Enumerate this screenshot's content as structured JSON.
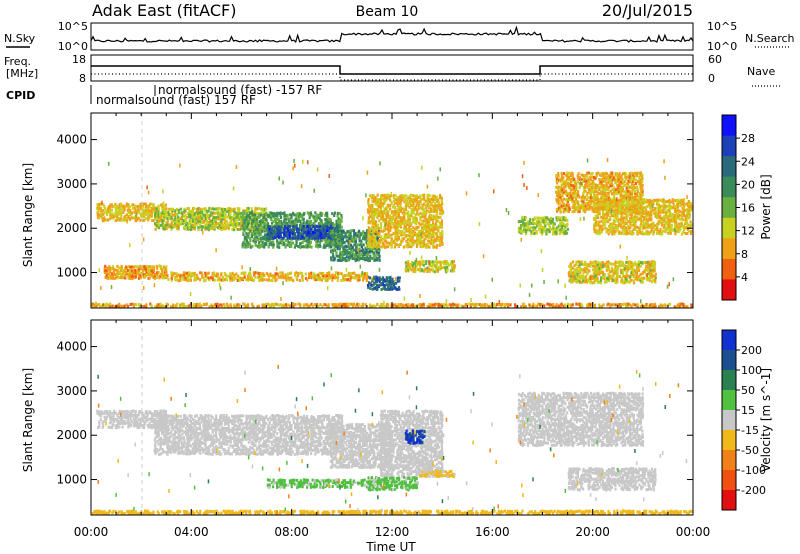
{
  "header": {
    "station": "Adak East (fitACF)",
    "beam": "Beam 10",
    "date": "20/Jul/2015"
  },
  "noise_panel": {
    "left_label": "N.Sky",
    "right_label": "N.Search",
    "left_ticks": [
      "10^5",
      "10^0"
    ],
    "right_ticks": [
      "10^5",
      "10^0"
    ],
    "right_line_style": "dotted"
  },
  "freq_panel": {
    "left_label_line1": "Freq.",
    "left_label_line2": "[MHz]",
    "right_label": "Nave",
    "left_ticks": [
      "18",
      "8"
    ],
    "right_ticks": [
      "60",
      "0"
    ],
    "right_line_style": "dotted"
  },
  "cpid_panel": {
    "label": "CPID",
    "entries": [
      {
        "text": "normalsound (fast) -157 RF",
        "start": "02:30",
        "row": "upper"
      },
      {
        "text": "normalsound (fast) 157 RF",
        "start": "00:00",
        "row": "lower"
      }
    ]
  },
  "chart_data": [
    {
      "type": "heatmap",
      "panel": "power",
      "xlabel": "",
      "ylabel": "Slant Range [km]",
      "x_ticks": [
        "00:00",
        "04:00",
        "08:00",
        "12:00",
        "16:00",
        "20:00",
        "00:00"
      ],
      "y_ticks": [
        1000,
        2000,
        3000,
        4000
      ],
      "ylim": [
        200,
        4600
      ],
      "xlim_hours": [
        0,
        24
      ],
      "colorbar": {
        "label": "Power [dB]",
        "ticks": [
          4,
          8,
          12,
          16,
          20,
          24,
          28
        ],
        "range": [
          0,
          32
        ],
        "colors": [
          "#1010ff",
          "#1c40b8",
          "#2a6a7a",
          "#3b8a5a",
          "#69b040",
          "#c8d020",
          "#f0a018",
          "#f06010",
          "#e01010"
        ]
      },
      "regions": [
        {
          "t0": 0.2,
          "t1": 3.0,
          "r0": 2200,
          "r1": 2600,
          "level": 10
        },
        {
          "t0": 2.5,
          "t1": 7.0,
          "r0": 2000,
          "r1": 2500,
          "level": 13
        },
        {
          "t0": 6.0,
          "t1": 10.0,
          "r0": 1600,
          "r1": 2400,
          "level": 18
        },
        {
          "t0": 7.0,
          "t1": 9.8,
          "r0": 1800,
          "r1": 2100,
          "level": 27
        },
        {
          "t0": 9.5,
          "t1": 11.5,
          "r0": 1300,
          "r1": 2000,
          "level": 20
        },
        {
          "t0": 11.0,
          "t1": 14.0,
          "r0": 1600,
          "r1": 2800,
          "level": 10
        },
        {
          "t0": 11.0,
          "t1": 12.3,
          "r0": 650,
          "r1": 950,
          "level": 24
        },
        {
          "t0": 12.5,
          "t1": 14.5,
          "r0": 1050,
          "r1": 1300,
          "level": 12
        },
        {
          "t0": 3.0,
          "t1": 11.0,
          "r0": 850,
          "r1": 1050,
          "level": 9
        },
        {
          "t0": 0.5,
          "t1": 3.0,
          "r0": 900,
          "r1": 1200,
          "level": 8
        },
        {
          "t0": 17.0,
          "t1": 19.0,
          "r0": 1900,
          "r1": 2300,
          "level": 14
        },
        {
          "t0": 18.5,
          "t1": 22.0,
          "r0": 2400,
          "r1": 3300,
          "level": 9
        },
        {
          "t0": 19.0,
          "t1": 22.5,
          "r0": 800,
          "r1": 1300,
          "level": 11
        },
        {
          "t0": 20.0,
          "t1": 24.0,
          "r0": 1900,
          "r1": 2700,
          "level": 10
        },
        {
          "t0": 0.0,
          "t1": 24.0,
          "r0": 220,
          "r1": 340,
          "level": 8
        }
      ]
    },
    {
      "type": "heatmap",
      "panel": "velocity",
      "xlabel": "Time UT",
      "ylabel": "Slant Range [km]",
      "x_ticks": [
        "00:00",
        "04:00",
        "08:00",
        "12:00",
        "16:00",
        "20:00",
        "00:00"
      ],
      "y_ticks": [
        1000,
        2000,
        3000,
        4000
      ],
      "ylim": [
        200,
        4600
      ],
      "xlim_hours": [
        0,
        24
      ],
      "colorbar": {
        "label": "Velocity [m s^-1]",
        "ticks": [
          "200",
          "100",
          "50",
          "15",
          "-15",
          "-50",
          "-100",
          "-200"
        ],
        "range": [
          -250,
          250
        ],
        "colors": [
          "#1030d0",
          "#1c5090",
          "#2a8050",
          "#50c040",
          "#c8c8c8",
          "#f0b818",
          "#f08018",
          "#f05010",
          "#e01010"
        ]
      },
      "regions": [
        {
          "t0": 0.2,
          "t1": 3.0,
          "r0": 2200,
          "r1": 2600,
          "level": 0
        },
        {
          "t0": 2.5,
          "t1": 10.0,
          "r0": 1600,
          "r1": 2500,
          "level": 0
        },
        {
          "t0": 9.5,
          "t1": 12.0,
          "r0": 1300,
          "r1": 2300,
          "level": 0
        },
        {
          "t0": 11.5,
          "t1": 14.0,
          "r0": 1100,
          "r1": 2600,
          "level": 0
        },
        {
          "t0": 12.5,
          "t1": 13.3,
          "r0": 1850,
          "r1": 2150,
          "level": 220
        },
        {
          "t0": 7.0,
          "t1": 11.0,
          "r0": 850,
          "r1": 1050,
          "level": 40
        },
        {
          "t0": 11.0,
          "t1": 13.0,
          "r0": 800,
          "r1": 1100,
          "level": 40
        },
        {
          "t0": 13.0,
          "t1": 14.5,
          "r0": 1100,
          "r1": 1250,
          "level": -40
        },
        {
          "t0": 17.0,
          "t1": 22.0,
          "r0": 1800,
          "r1": 3000,
          "level": 0
        },
        {
          "t0": 19.0,
          "t1": 22.5,
          "r0": 800,
          "r1": 1300,
          "level": 0
        },
        {
          "t0": 0.0,
          "t1": 24.0,
          "r0": 220,
          "r1": 340,
          "level": -60
        }
      ]
    }
  ],
  "colors": {
    "frame": "#000000",
    "ground_dash": "#cccccc"
  }
}
